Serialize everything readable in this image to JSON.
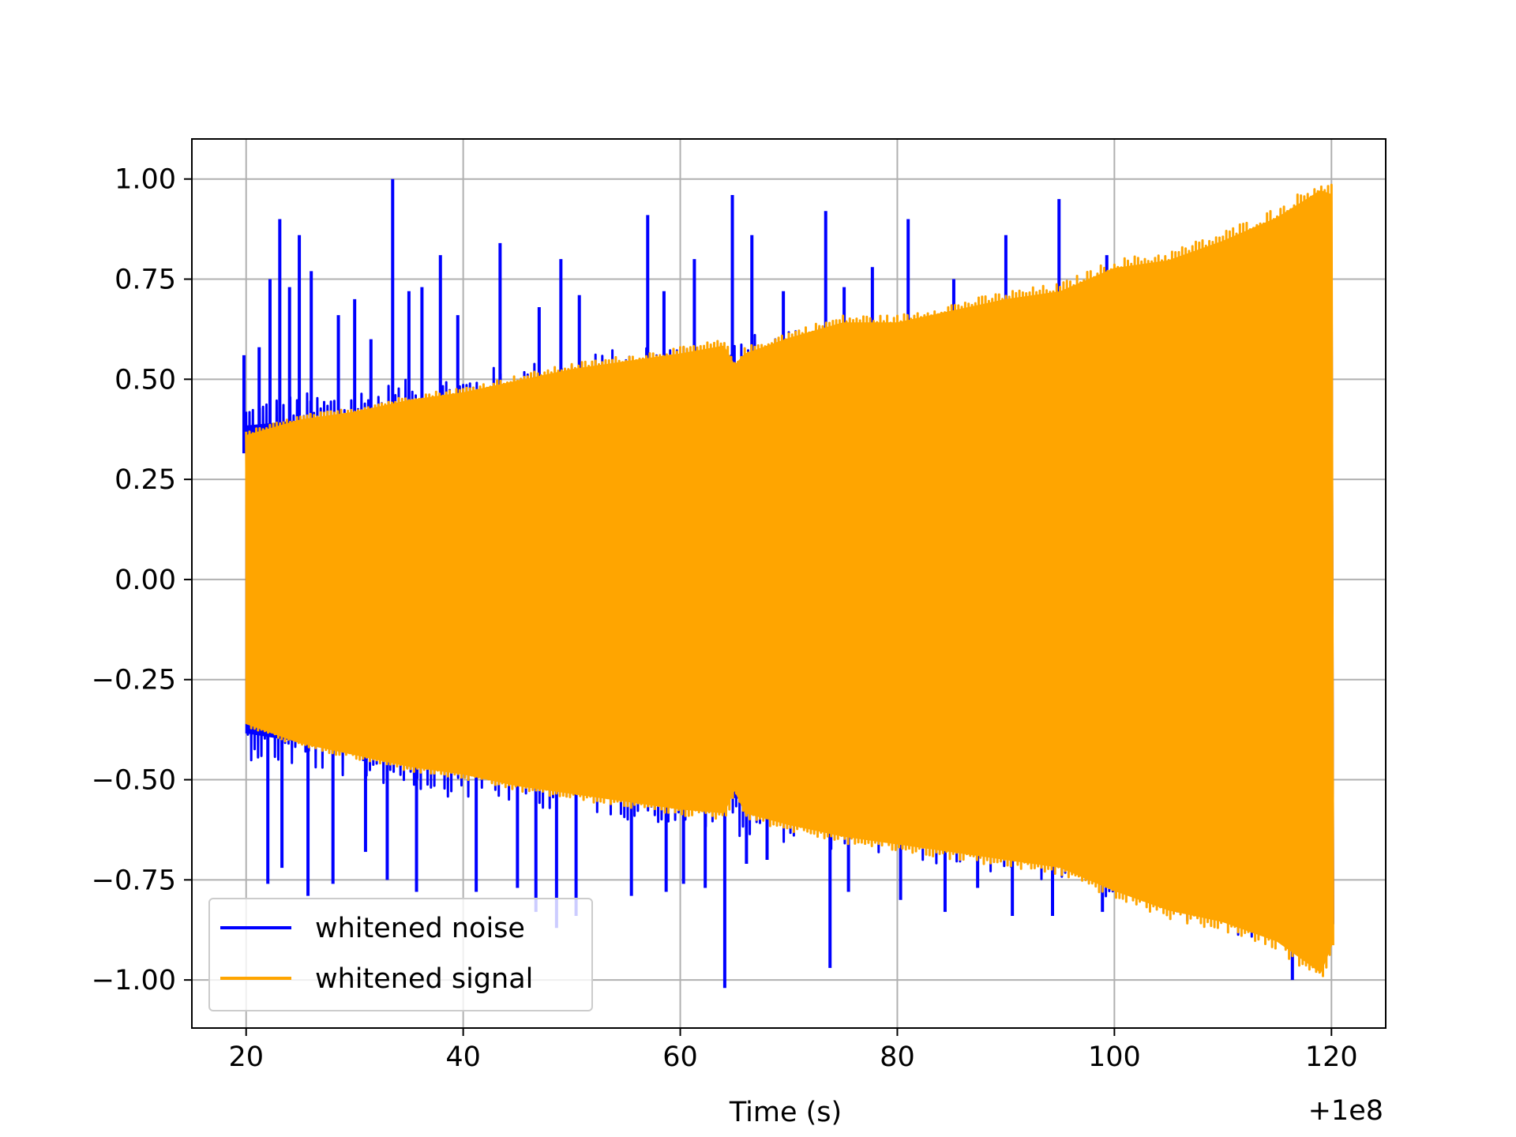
{
  "chart_data": {
    "type": "line",
    "title": "",
    "xlabel": "Time (s)",
    "ylabel": "",
    "x_offset_label": "+1e8",
    "xlim": [
      15,
      125
    ],
    "ylim": [
      -1.12,
      1.1
    ],
    "x_ticks": [
      20,
      40,
      60,
      80,
      100,
      120
    ],
    "x_tick_labels": [
      "20",
      "40",
      "60",
      "80",
      "100",
      "120"
    ],
    "y_ticks": [
      1.0,
      0.75,
      0.5,
      0.25,
      0.0,
      -0.25,
      -0.5,
      -0.75,
      -1.0
    ],
    "y_tick_labels": [
      "1.00",
      "0.75",
      "0.50",
      "0.25",
      "0.00",
      "−0.25",
      "−0.50",
      "−0.75",
      "−1.00"
    ],
    "grid": true,
    "legend_position": "lower-left",
    "series": [
      {
        "name": "whitened noise",
        "color": "#0000ff",
        "x_range": [
          20,
          120
        ],
        "envelope_x": [
          20,
          30,
          40,
          50,
          60,
          70,
          80,
          90,
          100,
          110,
          120
        ],
        "envelope_upper": [
          0.45,
          0.48,
          0.52,
          0.56,
          0.6,
          0.62,
          0.65,
          0.67,
          0.75,
          0.85,
          0.95
        ],
        "envelope_lower": [
          -0.45,
          -0.5,
          -0.55,
          -0.58,
          -0.62,
          -0.66,
          -0.7,
          -0.74,
          -0.8,
          -0.88,
          -0.95
        ],
        "spikes": [
          {
            "x": 19.8,
            "y": 0.56
          },
          {
            "x": 21.2,
            "y": 0.58
          },
          {
            "x": 22.2,
            "y": 0.75
          },
          {
            "x": 23.1,
            "y": 0.9
          },
          {
            "x": 24.0,
            "y": 0.73
          },
          {
            "x": 24.9,
            "y": 0.86
          },
          {
            "x": 26.0,
            "y": 0.77
          },
          {
            "x": 28.5,
            "y": 0.66
          },
          {
            "x": 30.0,
            "y": 0.7
          },
          {
            "x": 31.5,
            "y": 0.6
          },
          {
            "x": 33.5,
            "y": 1.0
          },
          {
            "x": 35.0,
            "y": 0.72
          },
          {
            "x": 36.2,
            "y": 0.73
          },
          {
            "x": 37.9,
            "y": 0.81
          },
          {
            "x": 39.5,
            "y": 0.66
          },
          {
            "x": 43.4,
            "y": 0.84
          },
          {
            "x": 47.0,
            "y": 0.68
          },
          {
            "x": 49.0,
            "y": 0.8
          },
          {
            "x": 50.7,
            "y": 0.71
          },
          {
            "x": 57.0,
            "y": 0.91
          },
          {
            "x": 58.5,
            "y": 0.72
          },
          {
            "x": 61.3,
            "y": 0.8
          },
          {
            "x": 64.8,
            "y": 0.96
          },
          {
            "x": 66.6,
            "y": 0.86
          },
          {
            "x": 69.5,
            "y": 0.72
          },
          {
            "x": 73.4,
            "y": 0.92
          },
          {
            "x": 75.1,
            "y": 0.73
          },
          {
            "x": 77.7,
            "y": 0.78
          },
          {
            "x": 81.0,
            "y": 0.9
          },
          {
            "x": 85.2,
            "y": 0.75
          },
          {
            "x": 90.0,
            "y": 0.86
          },
          {
            "x": 94.9,
            "y": 0.95
          },
          {
            "x": 99.3,
            "y": 0.81
          },
          {
            "x": 22.0,
            "y": -0.76
          },
          {
            "x": 23.3,
            "y": -0.72
          },
          {
            "x": 25.7,
            "y": -0.79
          },
          {
            "x": 28.0,
            "y": -0.76
          },
          {
            "x": 31.0,
            "y": -0.68
          },
          {
            "x": 33.0,
            "y": -0.75
          },
          {
            "x": 35.7,
            "y": -0.78
          },
          {
            "x": 41.2,
            "y": -0.78
          },
          {
            "x": 45.0,
            "y": -0.77
          },
          {
            "x": 46.7,
            "y": -0.83
          },
          {
            "x": 48.6,
            "y": -0.87
          },
          {
            "x": 50.4,
            "y": -0.84
          },
          {
            "x": 55.5,
            "y": -0.79
          },
          {
            "x": 58.7,
            "y": -0.78
          },
          {
            "x": 60.3,
            "y": -0.76
          },
          {
            "x": 62.3,
            "y": -0.77
          },
          {
            "x": 64.1,
            "y": -1.02
          },
          {
            "x": 66.1,
            "y": -0.71
          },
          {
            "x": 68.0,
            "y": -0.7
          },
          {
            "x": 73.8,
            "y": -0.97
          },
          {
            "x": 75.5,
            "y": -0.78
          },
          {
            "x": 80.3,
            "y": -0.8
          },
          {
            "x": 84.4,
            "y": -0.83
          },
          {
            "x": 87.4,
            "y": -0.77
          },
          {
            "x": 90.6,
            "y": -0.84
          },
          {
            "x": 94.3,
            "y": -0.84
          },
          {
            "x": 98.9,
            "y": -0.83
          },
          {
            "x": 116.4,
            "y": -1.0
          }
        ]
      },
      {
        "name": "whitened signal",
        "color": "#ffa500",
        "x_range": [
          20,
          120
        ],
        "envelope_x": [
          20,
          25,
          30,
          35,
          40,
          45,
          50,
          55,
          60,
          64,
          65,
          66,
          70,
          75,
          80,
          85,
          90,
          95,
          100,
          105,
          110,
          115,
          119,
          120
        ],
        "envelope_upper": [
          0.37,
          0.41,
          0.43,
          0.46,
          0.48,
          0.51,
          0.54,
          0.56,
          0.58,
          0.6,
          0.55,
          0.58,
          0.62,
          0.66,
          0.66,
          0.69,
          0.72,
          0.74,
          0.8,
          0.82,
          0.87,
          0.93,
          1.0,
          0.99
        ],
        "envelope_lower": [
          -0.37,
          -0.42,
          -0.45,
          -0.48,
          -0.5,
          -0.53,
          -0.55,
          -0.57,
          -0.59,
          -0.6,
          -0.54,
          -0.6,
          -0.63,
          -0.66,
          -0.68,
          -0.7,
          -0.72,
          -0.74,
          -0.8,
          -0.85,
          -0.88,
          -0.93,
          -1.01,
          -0.94
        ]
      }
    ]
  }
}
